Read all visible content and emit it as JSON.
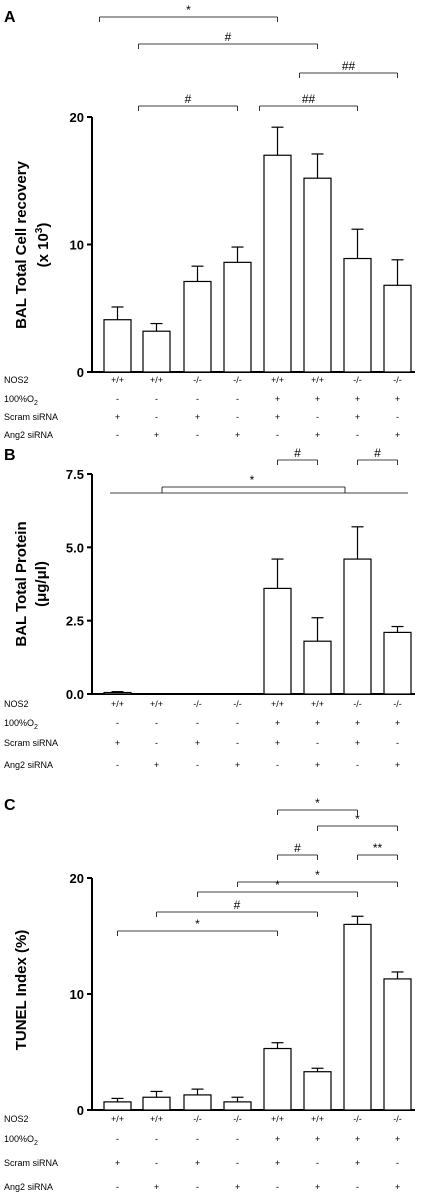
{
  "chart_data": [
    {
      "type": "bar",
      "panel": "A",
      "ylabel": "BAL Total Cell recovery",
      "ylabel_unit_prefix": "(x 10",
      "ylabel_unit_exp": "3",
      "ylabel_unit_suffix": ")",
      "ylim": [
        0,
        20
      ],
      "yticks": [
        0,
        10,
        20
      ],
      "values": [
        4.1,
        3.2,
        7.1,
        8.6,
        17.0,
        15.2,
        8.9,
        6.8
      ],
      "errors": [
        1.0,
        0.6,
        1.2,
        1.2,
        2.2,
        1.9,
        2.3,
        2.0
      ],
      "conditions": {
        "labels": [
          "NOS2",
          "100%O",
          "Scram siRNA",
          "Ang2 siRNA"
        ],
        "rows": [
          [
            "+/+",
            "+/+",
            "-/-",
            "-/-",
            "+/+",
            "+/+",
            "-/-",
            "-/-"
          ],
          [
            "-",
            "-",
            "-",
            "-",
            "+",
            "+",
            "+",
            "+"
          ],
          [
            "+",
            "-",
            "+",
            "-",
            "+",
            "-",
            "+",
            "-"
          ],
          [
            "-",
            "+",
            "-",
            "+",
            "-",
            "+",
            "-",
            "+"
          ]
        ]
      },
      "brackets": [
        {
          "text": "*",
          "from": 1,
          "to": 5
        },
        {
          "text": "#",
          "from": 2,
          "to": 6
        },
        {
          "text": "##",
          "from": 6,
          "to": 8
        },
        {
          "text": "#",
          "from": 2,
          "to": 4
        },
        {
          "text": "##",
          "from": 5,
          "to": 7
        }
      ]
    },
    {
      "type": "bar",
      "panel": "B",
      "ylabel": "BAL Total Protein",
      "ylabel_unit": "(μg/μl)",
      "ylim": [
        0,
        7.5
      ],
      "yticks": [
        0.0,
        2.5,
        5.0,
        7.5
      ],
      "ytick_labels": [
        "0.0",
        "2.5",
        "5.0",
        "7.5"
      ],
      "values": [
        0.05,
        0,
        0,
        0,
        3.6,
        1.8,
        4.6,
        2.1
      ],
      "errors": [
        0.03,
        0,
        0,
        0,
        1.0,
        0.8,
        1.1,
        0.2
      ],
      "conditions": {
        "labels": [
          "NOS2",
          "100%O",
          "Scram siRNA",
          "Ang2 siRNA"
        ],
        "rows": [
          [
            "+/+",
            "+/+",
            "-/-",
            "-/-",
            "+/+",
            "+/+",
            "-/-",
            "-/-"
          ],
          [
            "-",
            "-",
            "-",
            "-",
            "+",
            "+",
            "+",
            "+"
          ],
          [
            "+",
            "-",
            "+",
            "-",
            "+",
            "-",
            "+",
            "-"
          ],
          [
            "-",
            "+",
            "-",
            "+",
            "-",
            "+",
            "-",
            "+"
          ]
        ]
      },
      "brackets": [
        {
          "text": "#",
          "from": 5,
          "to": 6
        },
        {
          "text": "#",
          "from": 7,
          "to": 8
        }
      ],
      "group_bracket": {
        "text": "*"
      }
    },
    {
      "type": "bar",
      "panel": "C",
      "ylabel": "TUNEL Index (%)",
      "ylim": [
        0,
        20
      ],
      "yticks": [
        0,
        10,
        20
      ],
      "values": [
        0.7,
        1.1,
        1.3,
        0.7,
        5.3,
        3.3,
        16.0,
        11.3
      ],
      "errors": [
        0.3,
        0.5,
        0.5,
        0.4,
        0.5,
        0.3,
        0.7,
        0.6
      ],
      "conditions": {
        "labels": [
          "NOS2",
          "100%O",
          "Scram siRNA",
          "Ang2 siRNA"
        ],
        "rows": [
          [
            "+/+",
            "+/+",
            "-/-",
            "-/-",
            "+/+",
            "+/+",
            "-/-",
            "-/-"
          ],
          [
            "-",
            "-",
            "-",
            "-",
            "+",
            "+",
            "+",
            "+"
          ],
          [
            "+",
            "-",
            "+",
            "-",
            "+",
            "-",
            "+",
            "-"
          ],
          [
            "-",
            "+",
            "-",
            "+",
            "-",
            "+",
            "-",
            "+"
          ]
        ]
      },
      "brackets": [
        {
          "text": "*",
          "from": 5,
          "to": 7
        },
        {
          "text": "*",
          "from": 6,
          "to": 8
        },
        {
          "text": "#",
          "from": 5,
          "to": 6
        },
        {
          "text": "**",
          "from": 7,
          "to": 8
        },
        {
          "text": "*",
          "from": 4,
          "to": 8
        },
        {
          "text": "*",
          "from": 3,
          "to": 7
        },
        {
          "text": "#",
          "from": 2,
          "to": 6
        },
        {
          "text": "*",
          "from": 1,
          "to": 5
        }
      ]
    }
  ]
}
